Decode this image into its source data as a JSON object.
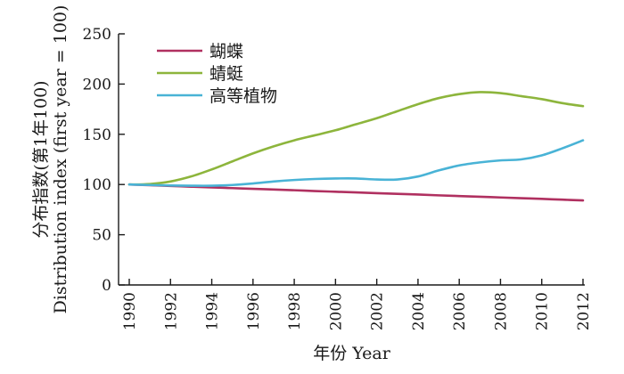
{
  "chart_data": {
    "type": "line",
    "xlabel": "年份 Year",
    "ylabel_line1": "分布指数(第1年100)",
    "ylabel_line2": "Distribution index (first year = 100)",
    "xlim": [
      1990,
      2012
    ],
    "ylim": [
      0,
      250
    ],
    "xticks": [
      1990,
      1992,
      1994,
      1996,
      1998,
      2000,
      2002,
      2004,
      2006,
      2008,
      2010,
      2012
    ],
    "yticks": [
      0,
      50,
      100,
      150,
      200,
      250
    ],
    "grid": false,
    "legend_position": "top-left",
    "x": [
      1990,
      1991,
      1992,
      1993,
      1994,
      1995,
      1996,
      1997,
      1998,
      1999,
      2000,
      2001,
      2002,
      2003,
      2004,
      2005,
      2006,
      2007,
      2008,
      2009,
      2010,
      2011,
      2012
    ],
    "series": [
      {
        "name": "蝴蝶",
        "color": "#b03060",
        "values": [
          100,
          99.3,
          98.6,
          97.8,
          97.1,
          96.4,
          95.7,
          95.0,
          94.3,
          93.5,
          92.8,
          92.1,
          91.4,
          90.7,
          90.0,
          89.2,
          88.5,
          87.8,
          87.1,
          86.4,
          85.7,
          84.9,
          84.2
        ]
      },
      {
        "name": "蜻蜓",
        "color": "#8db53c",
        "values": [
          100,
          100.5,
          103,
          108,
          115,
          123,
          131,
          138,
          144,
          149,
          154,
          160,
          166,
          173,
          180,
          186,
          190,
          192,
          191,
          188,
          185,
          181,
          178
        ]
      },
      {
        "name": "高等植物",
        "color": "#49b3d6",
        "values": [
          100,
          99.5,
          99,
          98.8,
          98.8,
          99.5,
          101,
          103,
          104.5,
          105.5,
          106,
          106,
          105,
          105,
          108,
          114,
          119,
          122,
          124,
          125,
          129,
          136,
          144
        ]
      }
    ]
  }
}
